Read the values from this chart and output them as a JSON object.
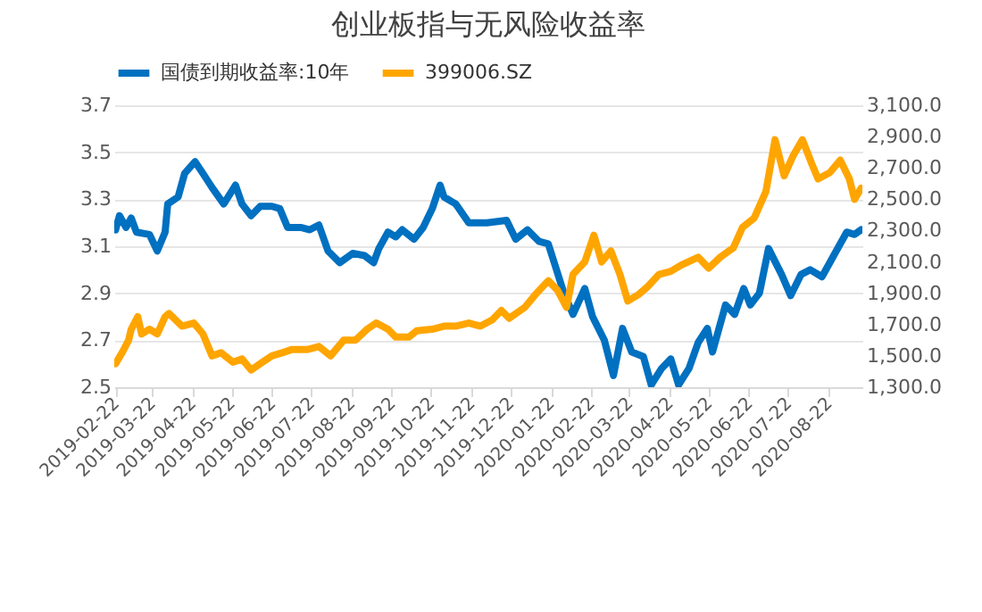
{
  "chart_data": {
    "type": "line",
    "title": "创业板指与无风险收益率",
    "xlim": [
      "2019-02-21",
      "2020-09-17"
    ],
    "xticks": [
      "2019-02-22",
      "2019-03-22",
      "2019-04-22",
      "2019-05-22",
      "2019-06-22",
      "2019-07-22",
      "2019-08-22",
      "2019-09-22",
      "2019-10-22",
      "2019-11-22",
      "2019-12-22",
      "2020-01-22",
      "2020-02-22",
      "2020-03-22",
      "2020-04-22",
      "2020-05-22",
      "2020-06-22",
      "2020-07-22",
      "2020-08-22"
    ],
    "ylim": [
      2.5,
      3.7
    ],
    "yticks": [
      2.5,
      2.7,
      2.9,
      3.1,
      3.3,
      3.5,
      3.7
    ],
    "y2lim": [
      1300,
      3100
    ],
    "y2ticks": [
      {
        "value": 1300,
        "label": "1,300.0"
      },
      {
        "value": 1500,
        "label": "1,500.0"
      },
      {
        "value": 1700,
        "label": "1,700.0"
      },
      {
        "value": 1900,
        "label": "1,900.0"
      },
      {
        "value": 2100,
        "label": "2,100.0"
      },
      {
        "value": 2300,
        "label": "2,300.0"
      },
      {
        "value": 2500,
        "label": "2,500.0"
      },
      {
        "value": 2700,
        "label": "2,700.0"
      },
      {
        "value": 2900,
        "label": "2,900.0"
      },
      {
        "value": 3100,
        "label": "3,100.0"
      }
    ],
    "grid": "y",
    "legend": "top",
    "line_style": "solid",
    "marker": "none",
    "series": [
      {
        "name": "国债到期收益率:10年",
        "color": "#0070c0",
        "x": [
          "2019-02-22",
          "2019-02-25",
          "2019-03-02",
          "2019-03-06",
          "2019-03-10",
          "2019-03-20",
          "2019-03-26",
          "2019-04-01",
          "2019-04-03",
          "2019-04-11",
          "2019-04-16",
          "2019-04-24",
          "2019-04-30",
          "2019-05-07",
          "2019-05-16",
          "2019-05-25",
          "2019-05-30",
          "2019-06-06",
          "2019-06-13",
          "2019-06-22",
          "2019-06-28",
          "2019-07-04",
          "2019-07-14",
          "2019-07-21",
          "2019-07-28",
          "2019-08-04",
          "2019-08-13",
          "2019-08-23",
          "2019-09-01",
          "2019-09-08",
          "2019-09-12",
          "2019-09-19",
          "2019-09-25",
          "2019-09-30",
          "2019-10-09",
          "2019-10-16",
          "2019-10-23",
          "2019-10-29",
          "2019-11-01",
          "2019-11-10",
          "2019-11-20",
          "2019-12-04",
          "2019-12-19",
          "2019-12-26",
          "2020-01-04",
          "2020-01-13",
          "2020-01-20",
          "2020-02-01",
          "2020-02-08",
          "2020-02-17",
          "2020-02-23",
          "2020-03-03",
          "2020-03-10",
          "2020-03-17",
          "2020-03-24",
          "2020-04-02",
          "2020-04-08",
          "2020-04-16",
          "2020-04-23",
          "2020-04-29",
          "2020-05-07",
          "2020-05-14",
          "2020-05-21",
          "2020-05-25",
          "2020-06-04",
          "2020-06-11",
          "2020-06-18",
          "2020-06-23",
          "2020-06-30",
          "2020-07-07",
          "2020-07-17",
          "2020-07-24",
          "2020-08-01",
          "2020-08-08",
          "2020-08-17",
          "2020-08-26",
          "2020-09-05",
          "2020-09-11",
          "2020-09-16"
        ],
        "values": [
          3.17,
          3.23,
          3.18,
          3.22,
          3.16,
          3.15,
          3.08,
          3.16,
          3.28,
          3.31,
          3.41,
          3.46,
          3.41,
          3.35,
          3.28,
          3.36,
          3.28,
          3.23,
          3.27,
          3.27,
          3.26,
          3.18,
          3.18,
          3.17,
          3.19,
          3.08,
          3.03,
          3.07,
          3.06,
          3.03,
          3.09,
          3.16,
          3.14,
          3.17,
          3.13,
          3.18,
          3.26,
          3.36,
          3.31,
          3.28,
          3.2,
          3.2,
          3.21,
          3.13,
          3.17,
          3.12,
          3.11,
          2.9,
          2.81,
          2.92,
          2.8,
          2.7,
          2.55,
          2.75,
          2.65,
          2.63,
          2.51,
          2.58,
          2.62,
          2.51,
          2.58,
          2.69,
          2.75,
          2.65,
          2.85,
          2.81,
          2.92,
          2.85,
          2.9,
          3.09,
          2.98,
          2.89,
          2.98,
          3.0,
          2.97,
          3.06,
          3.16,
          3.15,
          3.17
        ]
      },
      {
        "name": "399006.SZ",
        "color": "#ffa500",
        "axis": "y2",
        "x": [
          "2019-02-22",
          "2019-02-27",
          "2019-03-04",
          "2019-03-06",
          "2019-03-11",
          "2019-03-14",
          "2019-03-20",
          "2019-03-26",
          "2019-04-01",
          "2019-04-04",
          "2019-04-14",
          "2019-04-23",
          "2019-04-30",
          "2019-05-07",
          "2019-05-14",
          "2019-05-23",
          "2019-05-30",
          "2019-06-06",
          "2019-06-13",
          "2019-06-22",
          "2019-06-30",
          "2019-07-07",
          "2019-07-19",
          "2019-07-28",
          "2019-08-06",
          "2019-08-16",
          "2019-08-25",
          "2019-09-03",
          "2019-09-10",
          "2019-09-19",
          "2019-09-25",
          "2019-10-05",
          "2019-10-11",
          "2019-10-23",
          "2019-11-01",
          "2019-11-10",
          "2019-11-20",
          "2019-11-29",
          "2019-12-08",
          "2019-12-15",
          "2019-12-21",
          "2020-01-02",
          "2020-01-11",
          "2020-01-20",
          "2020-01-27",
          "2020-02-03",
          "2020-02-08",
          "2020-02-17",
          "2020-02-24",
          "2020-03-01",
          "2020-03-08",
          "2020-03-15",
          "2020-03-21",
          "2020-03-29",
          "2020-04-05",
          "2020-04-14",
          "2020-04-23",
          "2020-05-01",
          "2020-05-14",
          "2020-05-22",
          "2020-05-31",
          "2020-06-10",
          "2020-06-17",
          "2020-06-26",
          "2020-07-05",
          "2020-07-12",
          "2020-07-19",
          "2020-07-26",
          "2020-08-02",
          "2020-08-09",
          "2020-08-14",
          "2020-08-23",
          "2020-08-31",
          "2020-09-07",
          "2020-09-11",
          "2020-09-16"
        ],
        "values": [
          1450,
          1520,
          1600,
          1670,
          1750,
          1640,
          1670,
          1640,
          1750,
          1770,
          1690,
          1710,
          1640,
          1500,
          1520,
          1460,
          1480,
          1410,
          1450,
          1500,
          1520,
          1540,
          1540,
          1560,
          1500,
          1600,
          1600,
          1670,
          1710,
          1670,
          1620,
          1620,
          1660,
          1670,
          1690,
          1690,
          1710,
          1690,
          1730,
          1790,
          1740,
          1810,
          1900,
          1980,
          1920,
          1810,
          2020,
          2100,
          2270,
          2100,
          2170,
          2020,
          1850,
          1890,
          1940,
          2020,
          2040,
          2080,
          2130,
          2060,
          2130,
          2190,
          2320,
          2380,
          2550,
          2880,
          2650,
          2780,
          2880,
          2730,
          2630,
          2670,
          2750,
          2630,
          2500,
          2570
        ]
      }
    ]
  }
}
